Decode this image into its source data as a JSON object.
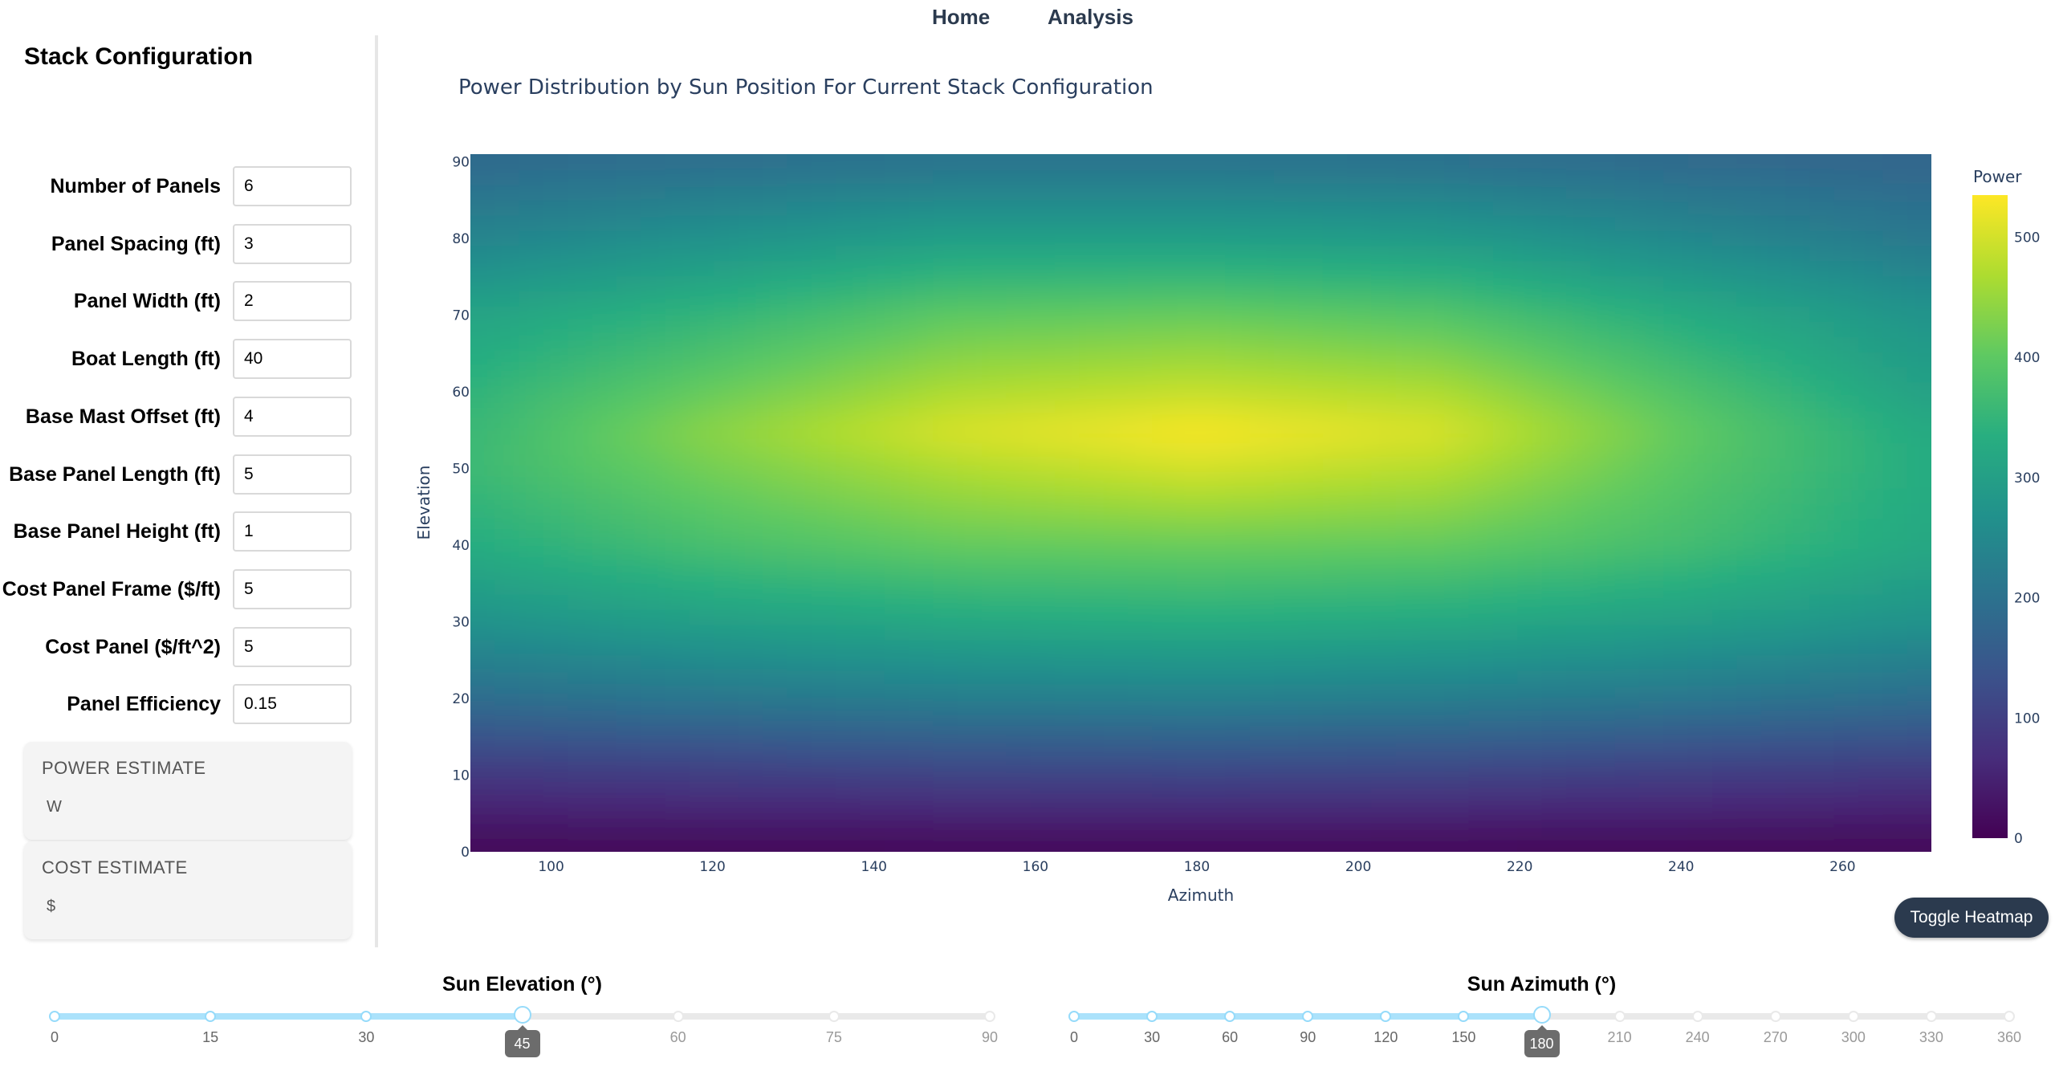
{
  "nav": {
    "home": "Home",
    "analysis": "Analysis"
  },
  "sidebar": {
    "title": "Stack Configuration",
    "fields": [
      {
        "label": "Number of Panels",
        "value": "6"
      },
      {
        "label": "Panel Spacing (ft)",
        "value": "3"
      },
      {
        "label": "Panel Width (ft)",
        "value": "2"
      },
      {
        "label": "Boat Length (ft)",
        "value": "40"
      },
      {
        "label": "Base Mast Offset (ft)",
        "value": "4"
      },
      {
        "label": "Base Panel Length (ft)",
        "value": "5"
      },
      {
        "label": "Base Panel Height (ft)",
        "value": "1"
      },
      {
        "label": "Cost Panel Frame ($/ft)",
        "value": "5"
      },
      {
        "label": "Cost Panel ($/ft^2)",
        "value": "5"
      },
      {
        "label": "Panel Efficiency",
        "value": "0.15"
      }
    ],
    "power_estimate": {
      "title": "POWER ESTIMATE",
      "value": "W"
    },
    "cost_estimate": {
      "title": "COST ESTIMATE",
      "value": "$"
    }
  },
  "chart_data": {
    "type": "heatmap",
    "title": "Power Distribution by Sun Position For Current Stack Configuration",
    "xlabel": "Azimuth",
    "ylabel": "Elevation",
    "xlim": [
      90,
      271
    ],
    "ylim": [
      0,
      91
    ],
    "x_ticks": [
      100,
      120,
      140,
      160,
      180,
      200,
      220,
      240,
      260
    ],
    "y_ticks": [
      0,
      10,
      20,
      30,
      40,
      50,
      60,
      70,
      80,
      90
    ],
    "colorscale": "Viridis",
    "colorbar": {
      "title": "Power",
      "range": [
        0,
        535
      ],
      "ticks": [
        0,
        100,
        200,
        300,
        400,
        500
      ]
    },
    "z_grid": {
      "azimuth": [
        90,
        120,
        150,
        180,
        210,
        240,
        270
      ],
      "elevation": [
        0,
        10,
        20,
        30,
        40,
        50,
        55,
        60,
        70,
        80,
        90
      ],
      "values": [
        [
          5,
          5,
          5,
          5,
          5,
          5,
          5
        ],
        [
          85,
          95,
          105,
          110,
          105,
          95,
          85
        ],
        [
          190,
          210,
          225,
          230,
          225,
          210,
          190
        ],
        [
          270,
          300,
          320,
          330,
          320,
          300,
          270
        ],
        [
          330,
          375,
          405,
          410,
          405,
          370,
          320
        ],
        [
          360,
          420,
          470,
          500,
          475,
          395,
          330
        ],
        [
          355,
          440,
          505,
          530,
          505,
          405,
          325
        ],
        [
          345,
          410,
          470,
          490,
          470,
          385,
          305
        ],
        [
          310,
          350,
          400,
          410,
          390,
          330,
          275
        ],
        [
          240,
          270,
          300,
          300,
          290,
          250,
          215
        ],
        [
          185,
          195,
          205,
          205,
          200,
          185,
          175
        ]
      ]
    }
  },
  "toggle_button": {
    "label": "Toggle Heatmap"
  },
  "sliders": [
    {
      "title": "Sun Elevation (°)",
      "min": 0,
      "max": 90,
      "value": 45,
      "marks": [
        "0",
        "15",
        "30",
        "45",
        "60",
        "75",
        "90"
      ],
      "display_value": "45"
    },
    {
      "title": "Sun Azimuth (°)",
      "min": 0,
      "max": 360,
      "value": 180,
      "marks": [
        "0",
        "30",
        "60",
        "90",
        "120",
        "150",
        "180",
        "210",
        "240",
        "270",
        "300",
        "330",
        "360"
      ],
      "display_value": "180"
    }
  ]
}
